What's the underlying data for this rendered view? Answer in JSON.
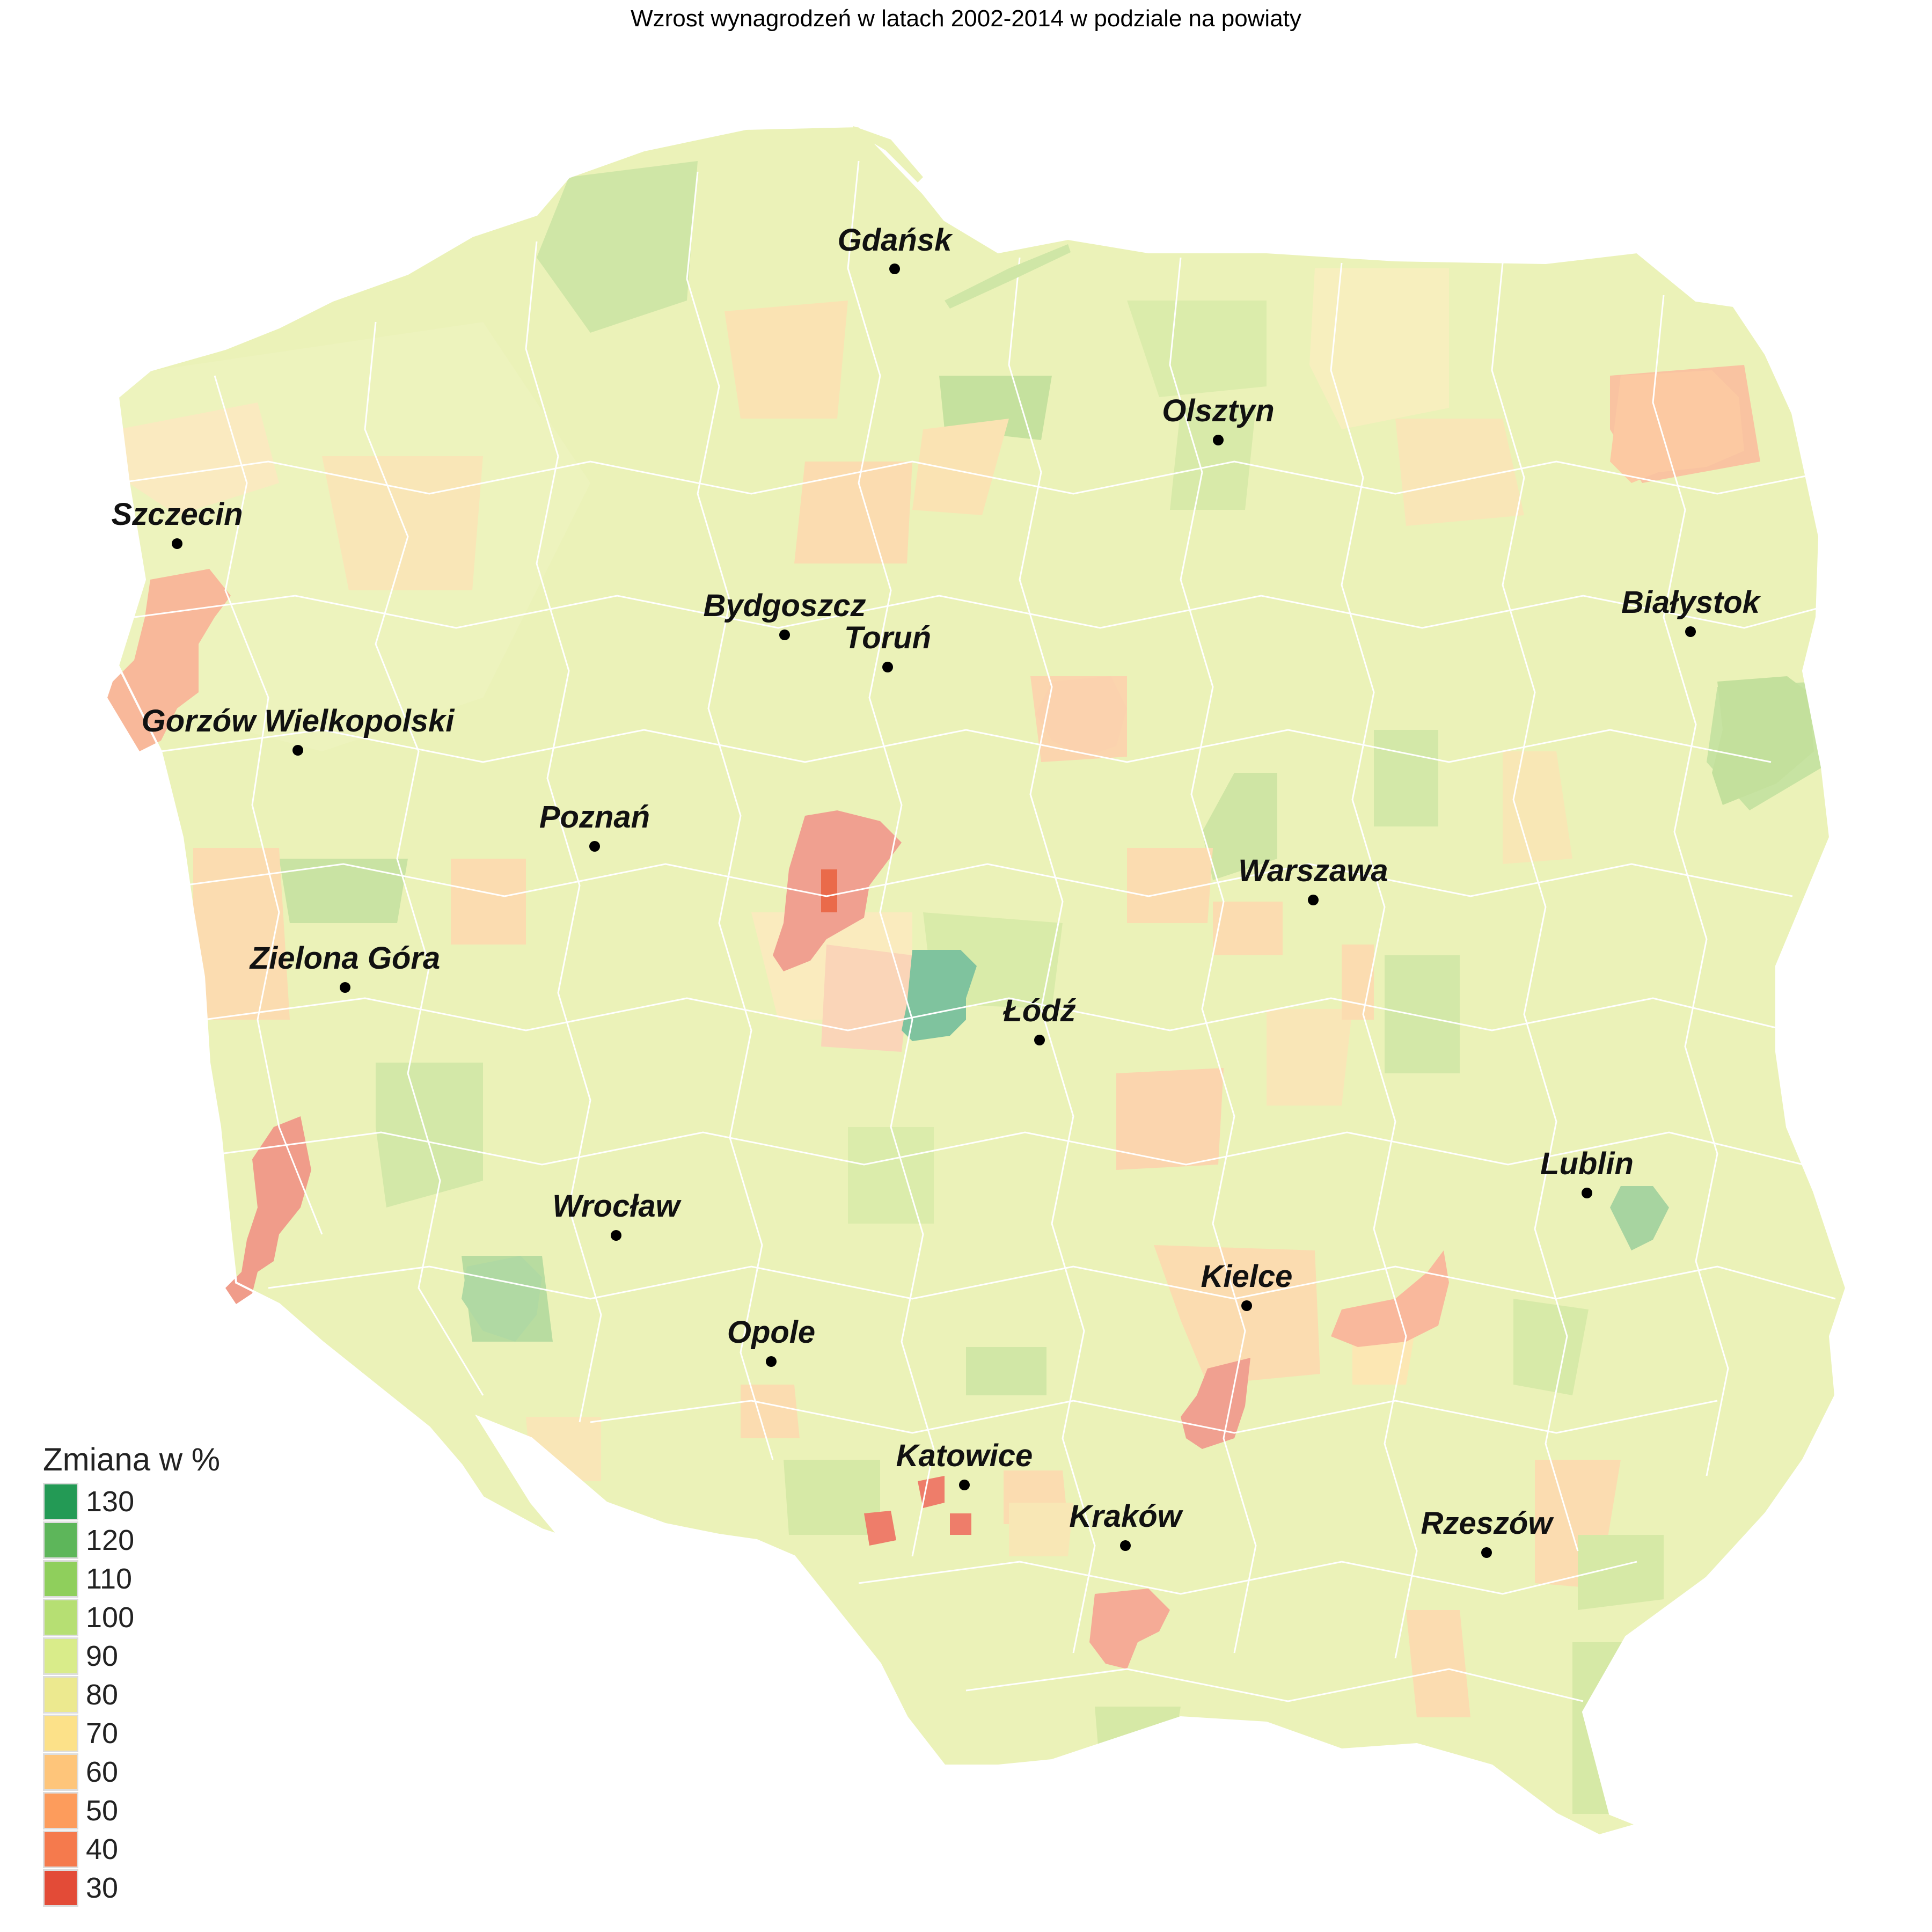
{
  "title": "Wzrost wynagrodzeń w latach 2002-2014 w podziale na powiaty",
  "legend": {
    "title": "Zmiana w %",
    "entries": [
      {
        "label": "130",
        "color": "#239a55"
      },
      {
        "label": "120",
        "color": "#5db65a"
      },
      {
        "label": "110",
        "color": "#8fcf5c"
      },
      {
        "label": "100",
        "color": "#b6df73"
      },
      {
        "label": "90",
        "color": "#d9ec8a"
      },
      {
        "label": "80",
        "color": "#ece98f"
      },
      {
        "label": "70",
        "color": "#fce189"
      },
      {
        "label": "60",
        "color": "#fec57a"
      },
      {
        "label": "50",
        "color": "#fd9c5c"
      },
      {
        "label": "40",
        "color": "#f57a4d"
      },
      {
        "label": "30",
        "color": "#e34b37"
      }
    ]
  },
  "cities": [
    {
      "name": "Gdańsk"
    },
    {
      "name": "Olsztyn"
    },
    {
      "name": "Szczecin"
    },
    {
      "name": "Bydgoszcz"
    },
    {
      "name": "Toruń"
    },
    {
      "name": "Białystok"
    },
    {
      "name": "Gorzów Wielkopolski"
    },
    {
      "name": "Poznań"
    },
    {
      "name": "Warszawa"
    },
    {
      "name": "Zielona Góra"
    },
    {
      "name": "Łódź"
    },
    {
      "name": "Lublin"
    },
    {
      "name": "Wrocław"
    },
    {
      "name": "Kielce"
    },
    {
      "name": "Opole"
    },
    {
      "name": "Katowice"
    },
    {
      "name": "Kraków"
    },
    {
      "name": "Rzeszów"
    }
  ]
}
